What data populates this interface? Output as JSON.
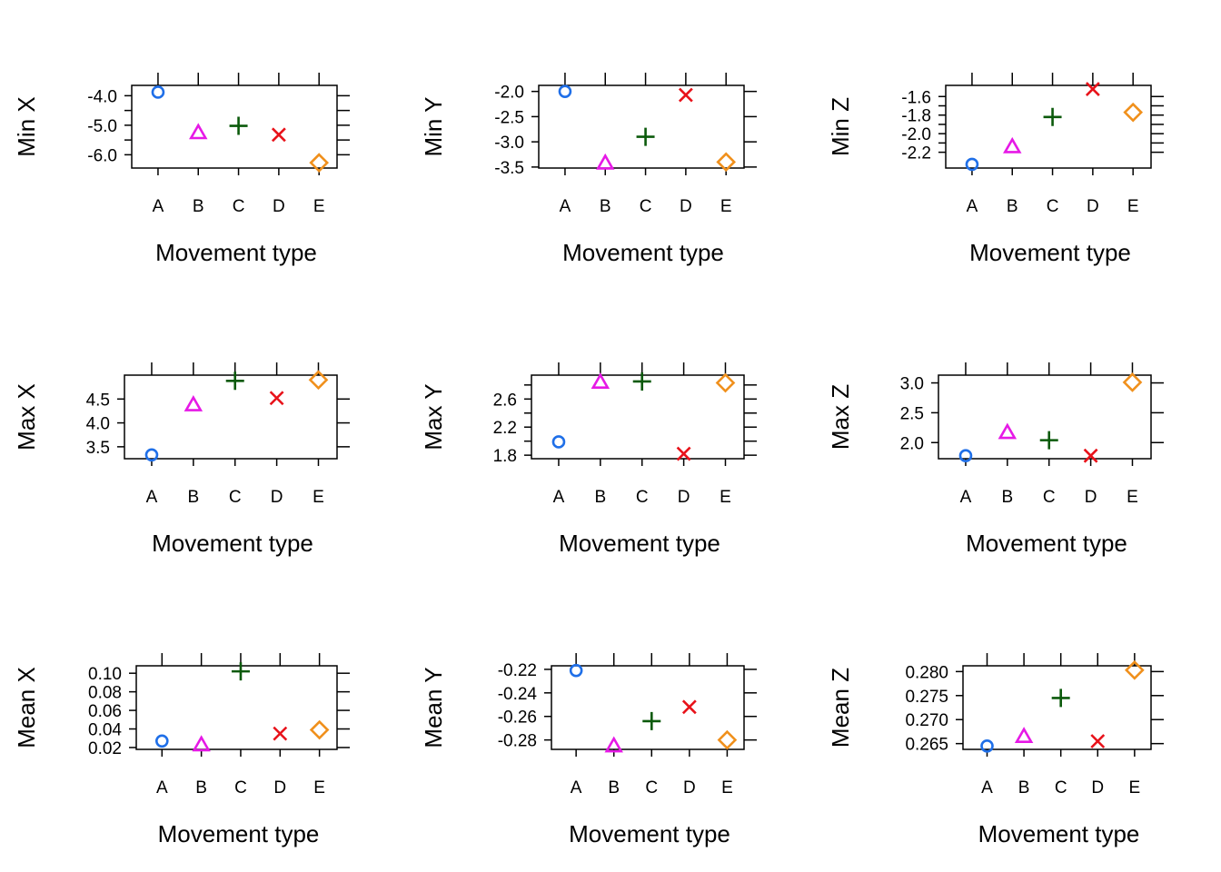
{
  "chart_data": [
    {
      "type": "scatter",
      "xlabel": "Movement type",
      "ylabel": "Min X",
      "categories": [
        "A",
        "B",
        "C",
        "D",
        "E"
      ],
      "values": [
        -3.88,
        -5.25,
        -5.02,
        -5.32,
        -6.27
      ],
      "ylim": [
        -6.45,
        -3.65
      ],
      "yticks": [
        -6.0,
        -5.5,
        -5.0,
        -4.5,
        -4.0
      ],
      "ytick_labels": [
        "-6.0",
        "",
        "-5.0",
        "",
        "-4.0"
      ]
    },
    {
      "type": "scatter",
      "xlabel": "Movement type",
      "ylabel": "Min Y",
      "categories": [
        "A",
        "B",
        "C",
        "D",
        "E"
      ],
      "values": [
        -2.0,
        -3.42,
        -2.9,
        -2.07,
        -3.4
      ],
      "ylim": [
        -3.52,
        -1.88
      ],
      "yticks": [
        -3.5,
        -3.0,
        -2.5,
        -2.0
      ],
      "ytick_labels": [
        "-3.5",
        "-3.0",
        "-2.5",
        "-2.0"
      ]
    },
    {
      "type": "scatter",
      "xlabel": "Movement type",
      "ylabel": "Min Z",
      "categories": [
        "A",
        "B",
        "C",
        "D",
        "E"
      ],
      "values": [
        -2.33,
        -2.14,
        -1.82,
        -1.52,
        -1.77
      ],
      "ylim": [
        -2.37,
        -1.48
      ],
      "yticks": [
        -2.2,
        -2.1,
        -2.0,
        -1.9,
        -1.8,
        -1.7,
        -1.6
      ],
      "ytick_labels": [
        "-2.2",
        "",
        "-2.0",
        "",
        "-1.8",
        "",
        "-1.6"
      ]
    },
    {
      "type": "scatter",
      "xlabel": "Movement type",
      "ylabel": "Max X",
      "categories": [
        "A",
        "B",
        "C",
        "D",
        "E"
      ],
      "values": [
        3.33,
        4.38,
        4.88,
        4.52,
        4.9
      ],
      "ylim": [
        3.25,
        5.0
      ],
      "yticks": [
        3.5,
        4.0,
        4.5
      ],
      "ytick_labels": [
        "3.5",
        "4.0",
        "4.5"
      ]
    },
    {
      "type": "scatter",
      "xlabel": "Movement type",
      "ylabel": "Max Y",
      "categories": [
        "A",
        "B",
        "C",
        "D",
        "E"
      ],
      "values": [
        1.99,
        2.84,
        2.85,
        1.82,
        2.83
      ],
      "ylim": [
        1.75,
        2.94
      ],
      "yticks": [
        1.8,
        2.0,
        2.2,
        2.4,
        2.6,
        2.8
      ],
      "ytick_labels": [
        "1.8",
        "",
        "2.2",
        "",
        "2.6",
        ""
      ]
    },
    {
      "type": "scatter",
      "xlabel": "Movement type",
      "ylabel": "Max Z",
      "categories": [
        "A",
        "B",
        "C",
        "D",
        "E"
      ],
      "values": [
        1.78,
        2.17,
        2.04,
        1.78,
        3.01
      ],
      "ylim": [
        1.73,
        3.13
      ],
      "yticks": [
        2.0,
        2.5,
        3.0
      ],
      "ytick_labels": [
        "2.0",
        "2.5",
        "3.0"
      ]
    },
    {
      "type": "scatter",
      "xlabel": "Movement type",
      "ylabel": "Mean X",
      "categories": [
        "A",
        "B",
        "C",
        "D",
        "E"
      ],
      "values": [
        0.027,
        0.023,
        0.102,
        0.035,
        0.039
      ],
      "ylim": [
        0.018,
        0.108
      ],
      "yticks": [
        0.02,
        0.04,
        0.06,
        0.08,
        0.1
      ],
      "ytick_labels": [
        "0.02",
        "0.04",
        "0.06",
        "0.08",
        "0.10"
      ]
    },
    {
      "type": "scatter",
      "xlabel": "Movement type",
      "ylabel": "Mean Y",
      "categories": [
        "A",
        "B",
        "C",
        "D",
        "E"
      ],
      "values": [
        -0.221,
        -0.285,
        -0.264,
        -0.252,
        -0.28
      ],
      "ylim": [
        -0.288,
        -0.217
      ],
      "yticks": [
        -0.28,
        -0.26,
        -0.24,
        -0.22
      ],
      "ytick_labels": [
        "-0.28",
        "-0.26",
        "-0.24",
        "-0.22"
      ]
    },
    {
      "type": "scatter",
      "xlabel": "Movement type",
      "ylabel": "Mean Z",
      "categories": [
        "A",
        "B",
        "C",
        "D",
        "E"
      ],
      "values": [
        0.2645,
        0.2665,
        0.2745,
        0.2655,
        0.2803
      ],
      "ylim": [
        0.2638,
        0.2812
      ],
      "yticks": [
        0.265,
        0.27,
        0.275,
        0.28
      ],
      "ytick_labels": [
        "0.265",
        "0.270",
        "0.275",
        "0.280"
      ]
    }
  ],
  "series_styles": [
    {
      "category": "A",
      "marker": "circle",
      "color": "#1f6fe8"
    },
    {
      "category": "B",
      "marker": "triangle",
      "color": "#e619e6"
    },
    {
      "category": "C",
      "marker": "plus",
      "color": "#0b5a0b"
    },
    {
      "category": "D",
      "marker": "cross",
      "color": "#e8121a"
    },
    {
      "category": "E",
      "marker": "diamond",
      "color": "#f0901c"
    }
  ]
}
